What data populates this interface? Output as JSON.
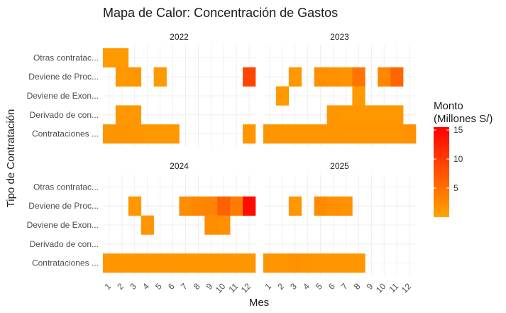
{
  "chart_data": {
    "type": "heatmap",
    "title": "Mapa de Calor: Concentración de Gastos",
    "xlabel": "Mes",
    "ylabel": "Tipo de Contratación",
    "x_categories": [
      "1",
      "2",
      "3",
      "4",
      "5",
      "6",
      "7",
      "8",
      "9",
      "10",
      "11",
      "12"
    ],
    "y_categories": [
      "Otras contratac...",
      "Deviene de Proc...",
      "Deviene de Exon...",
      "Derivado de con...",
      "Contrataciones ..."
    ],
    "legend": {
      "title_lines": [
        "Monto",
        "(Millones S/)"
      ],
      "ticks": [
        5,
        10,
        15
      ],
      "range": [
        0,
        15.5
      ],
      "colors": [
        "#FFA500",
        "#FF0000"
      ],
      "position": "right"
    },
    "grid": true,
    "facets": [
      {
        "label": "2022",
        "cells": [
          {
            "y": "Otras contratac...",
            "x": 1,
            "value": 1.0
          },
          {
            "y": "Otras contratac...",
            "x": 2,
            "value": 1.0
          },
          {
            "y": "Deviene de Proc...",
            "x": 2,
            "value": 1.2
          },
          {
            "y": "Deviene de Proc...",
            "x": 3,
            "value": 1.4
          },
          {
            "y": "Deviene de Proc...",
            "x": 5,
            "value": 1.1
          },
          {
            "y": "Deviene de Proc...",
            "x": 12,
            "value": 9.0
          },
          {
            "y": "Derivado de con...",
            "x": 2,
            "value": 1.3
          },
          {
            "y": "Derivado de con...",
            "x": 3,
            "value": 1.2
          },
          {
            "y": "Contrataciones ...",
            "x": 1,
            "value": 1.5
          },
          {
            "y": "Contrataciones ...",
            "x": 2,
            "value": 1.6
          },
          {
            "y": "Contrataciones ...",
            "x": 3,
            "value": 1.4
          },
          {
            "y": "Contrataciones ...",
            "x": 4,
            "value": 1.2
          },
          {
            "y": "Contrataciones ...",
            "x": 5,
            "value": 1.3
          },
          {
            "y": "Contrataciones ...",
            "x": 6,
            "value": 1.3
          },
          {
            "y": "Contrataciones ...",
            "x": 12,
            "value": 1.5
          }
        ]
      },
      {
        "label": "2023",
        "cells": [
          {
            "y": "Deviene de Proc...",
            "x": 3,
            "value": 1.3
          },
          {
            "y": "Deviene de Proc...",
            "x": 5,
            "value": 2.2
          },
          {
            "y": "Deviene de Proc...",
            "x": 6,
            "value": 1.9
          },
          {
            "y": "Deviene de Proc...",
            "x": 7,
            "value": 1.7
          },
          {
            "y": "Deviene de Proc...",
            "x": 8,
            "value": 4.5
          },
          {
            "y": "Deviene de Proc...",
            "x": 10,
            "value": 2.8
          },
          {
            "y": "Deviene de Proc...",
            "x": 11,
            "value": 6.0
          },
          {
            "y": "Deviene de Exon...",
            "x": 2,
            "value": 1.1
          },
          {
            "y": "Deviene de Exon...",
            "x": 8,
            "value": 1.0
          },
          {
            "y": "Derivado de con...",
            "x": 6,
            "value": 1.4
          },
          {
            "y": "Derivado de con...",
            "x": 7,
            "value": 1.3
          },
          {
            "y": "Derivado de con...",
            "x": 8,
            "value": 1.3
          },
          {
            "y": "Derivado de con...",
            "x": 9,
            "value": 1.2
          },
          {
            "y": "Derivado de con...",
            "x": 10,
            "value": 1.2
          },
          {
            "y": "Derivado de con...",
            "x": 11,
            "value": 1.2
          },
          {
            "y": "Contrataciones ...",
            "x": 1,
            "value": 1.5
          },
          {
            "y": "Contrataciones ...",
            "x": 2,
            "value": 1.5
          },
          {
            "y": "Contrataciones ...",
            "x": 3,
            "value": 1.4
          },
          {
            "y": "Contrataciones ...",
            "x": 4,
            "value": 1.4
          },
          {
            "y": "Contrataciones ...",
            "x": 5,
            "value": 1.4
          },
          {
            "y": "Contrataciones ...",
            "x": 6,
            "value": 1.4
          },
          {
            "y": "Contrataciones ...",
            "x": 7,
            "value": 1.4
          },
          {
            "y": "Contrataciones ...",
            "x": 8,
            "value": 1.4
          },
          {
            "y": "Contrataciones ...",
            "x": 9,
            "value": 1.4
          },
          {
            "y": "Contrataciones ...",
            "x": 10,
            "value": 1.5
          },
          {
            "y": "Contrataciones ...",
            "x": 11,
            "value": 1.5
          },
          {
            "y": "Contrataciones ...",
            "x": 12,
            "value": 1.9
          }
        ]
      },
      {
        "label": "2024",
        "cells": [
          {
            "y": "Deviene de Proc...",
            "x": 3,
            "value": 1.2
          },
          {
            "y": "Deviene de Proc...",
            "x": 7,
            "value": 2.3
          },
          {
            "y": "Deviene de Proc...",
            "x": 8,
            "value": 2.8
          },
          {
            "y": "Deviene de Proc...",
            "x": 9,
            "value": 3.2
          },
          {
            "y": "Deviene de Proc...",
            "x": 10,
            "value": 6.5
          },
          {
            "y": "Deviene de Proc...",
            "x": 11,
            "value": 4.0
          },
          {
            "y": "Deviene de Proc...",
            "x": 12,
            "value": 14.5
          },
          {
            "y": "Deviene de Exon...",
            "x": 4,
            "value": 1.5
          },
          {
            "y": "Deviene de Exon...",
            "x": 9,
            "value": 2.3
          },
          {
            "y": "Deviene de Exon...",
            "x": 10,
            "value": 2.0
          },
          {
            "y": "Contrataciones ...",
            "x": 1,
            "value": 1.4
          },
          {
            "y": "Contrataciones ...",
            "x": 2,
            "value": 1.4
          },
          {
            "y": "Contrataciones ...",
            "x": 3,
            "value": 1.4
          },
          {
            "y": "Contrataciones ...",
            "x": 4,
            "value": 1.4
          },
          {
            "y": "Contrataciones ...",
            "x": 5,
            "value": 1.4
          },
          {
            "y": "Contrataciones ...",
            "x": 6,
            "value": 1.4
          },
          {
            "y": "Contrataciones ...",
            "x": 7,
            "value": 1.4
          },
          {
            "y": "Contrataciones ...",
            "x": 8,
            "value": 1.4
          },
          {
            "y": "Contrataciones ...",
            "x": 9,
            "value": 1.4
          },
          {
            "y": "Contrataciones ...",
            "x": 10,
            "value": 1.4
          },
          {
            "y": "Contrataciones ...",
            "x": 11,
            "value": 1.4
          },
          {
            "y": "Contrataciones ...",
            "x": 12,
            "value": 1.4
          }
        ]
      },
      {
        "label": "2025",
        "cells": [
          {
            "y": "Deviene de Proc...",
            "x": 3,
            "value": 1.3
          },
          {
            "y": "Deviene de Proc...",
            "x": 5,
            "value": 2.5
          },
          {
            "y": "Deviene de Proc...",
            "x": 6,
            "value": 2.0
          },
          {
            "y": "Deviene de Proc...",
            "x": 7,
            "value": 1.8
          },
          {
            "y": "Contrataciones ...",
            "x": 1,
            "value": 1.5
          },
          {
            "y": "Contrataciones ...",
            "x": 2,
            "value": 1.5
          },
          {
            "y": "Contrataciones ...",
            "x": 3,
            "value": 1.9
          },
          {
            "y": "Contrataciones ...",
            "x": 4,
            "value": 1.6
          },
          {
            "y": "Contrataciones ...",
            "x": 5,
            "value": 1.5
          },
          {
            "y": "Contrataciones ...",
            "x": 6,
            "value": 1.5
          },
          {
            "y": "Contrataciones ...",
            "x": 7,
            "value": 1.5
          },
          {
            "y": "Contrataciones ...",
            "x": 8,
            "value": 1.4
          }
        ]
      }
    ]
  }
}
